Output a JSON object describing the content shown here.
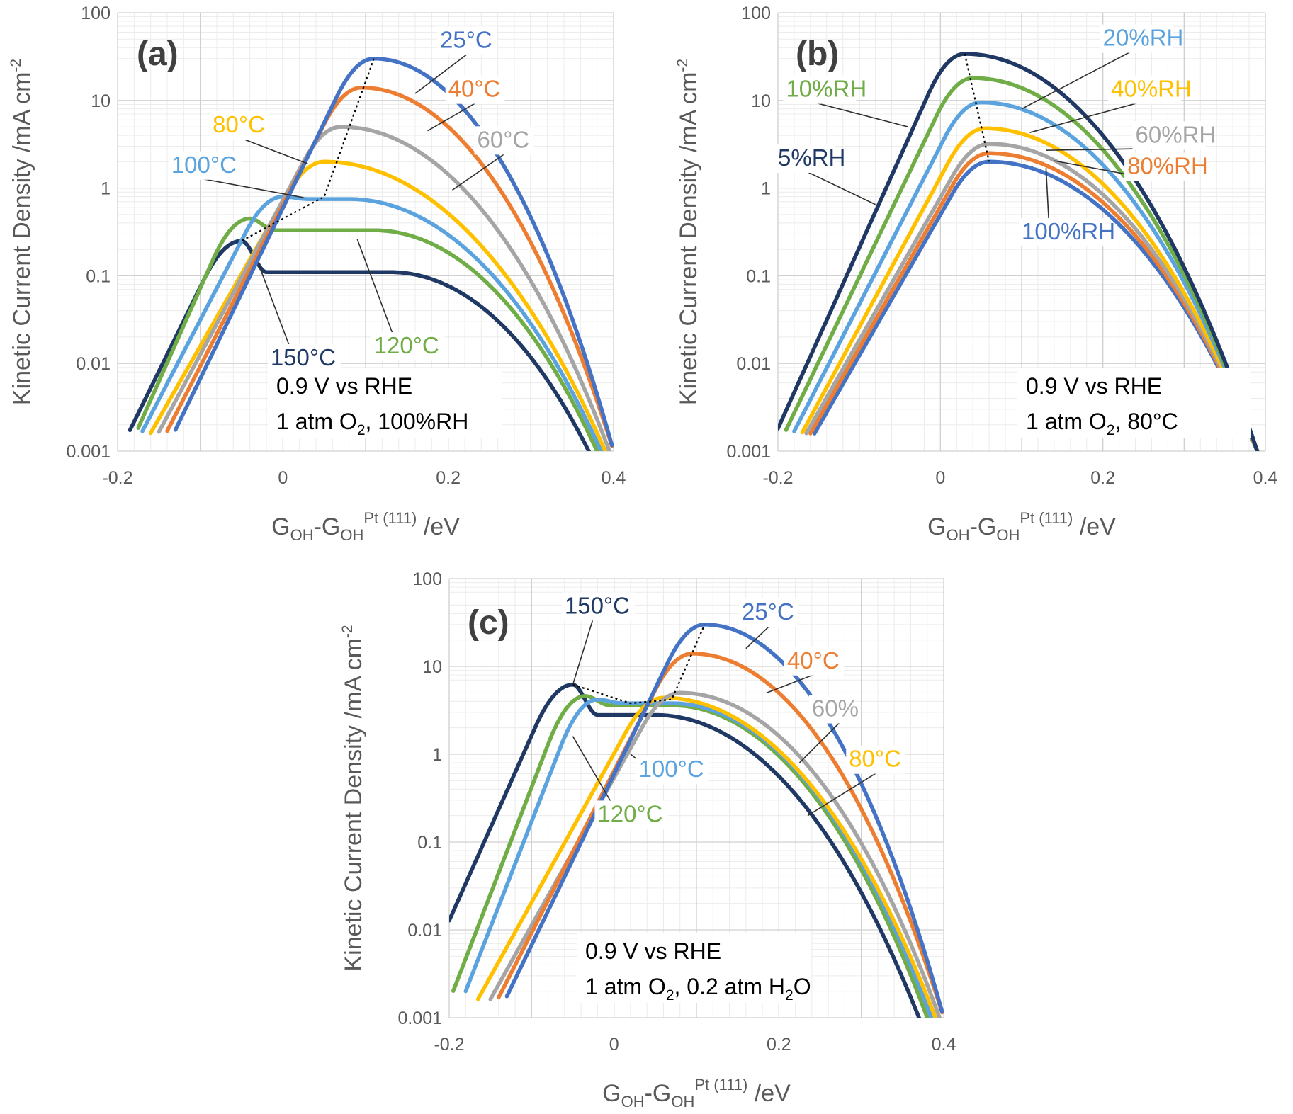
{
  "chart_data": [
    {
      "type": "line",
      "panel_label": "(a)",
      "xlabel": {
        "main": "G",
        "sub1": "OH",
        "mid": "-G",
        "sub2": "OH",
        "sup": "Pt (111)",
        "unit": " /eV"
      },
      "ylabel": {
        "text": "Kinetic Current Density /mA cm",
        "sup": "-2"
      },
      "xlim": [
        -0.2,
        0.4
      ],
      "ylim": [
        0.001,
        100
      ],
      "yscale": "log",
      "xticks": [
        "-0.2",
        "0",
        "0.2",
        "0.4"
      ],
      "yticks": [
        "0.001",
        "0.01",
        "0.1",
        "1",
        "10",
        "100"
      ],
      "grid": true,
      "conditions": [
        {
          "text": "0.9 V vs RHE"
        },
        {
          "pre": "1 atm O",
          "sub": "2",
          "post": ", 100%RH"
        }
      ],
      "series": [
        {
          "name": "25°C",
          "color": "#4472c4",
          "peak_x": 0.11,
          "peak_y": 30,
          "plateau": 0,
          "plateau_end": 0.05,
          "onset_x": -0.12,
          "end_x": 0.4,
          "label_x": 0.19,
          "label_y": 40,
          "anchor_x": 0.16,
          "anchor_y": 12
        },
        {
          "name": "40°C",
          "color": "#ed7d31",
          "peak_x": 0.095,
          "peak_y": 14,
          "plateau": 0,
          "plateau_end": 0.05,
          "onset_x": -0.13,
          "end_x": 0.4,
          "label_x": 0.2,
          "label_y": 11,
          "anchor_x": 0.175,
          "anchor_y": 4.5
        },
        {
          "name": "60°C",
          "color": "#a5a5a5",
          "peak_x": 0.07,
          "peak_y": 5,
          "plateau": 0,
          "plateau_end": 0.05,
          "onset_x": -0.14,
          "end_x": 0.395,
          "label_x": 0.235,
          "label_y": 2.9,
          "anchor_x": 0.205,
          "anchor_y": 0.95
        },
        {
          "name": "80°C",
          "color": "#ffc000",
          "peak_x": 0.05,
          "peak_y": 2,
          "plateau": 0,
          "plateau_end": 0.05,
          "onset_x": -0.15,
          "end_x": 0.39,
          "label_x": -0.085,
          "label_y": 4.3,
          "anchor_x": 0.03,
          "anchor_y": 1.9
        },
        {
          "name": "100°C",
          "color": "#5ba3de",
          "peak_x": 0.0,
          "peak_y": 0.8,
          "plateau": 0.75,
          "plateau_end": 0.08,
          "onset_x": -0.16,
          "end_x": 0.385,
          "label_x": -0.135,
          "label_y": 1.5,
          "anchor_x": 0.025,
          "anchor_y": 0.78
        },
        {
          "name": "120°C",
          "color": "#70ad47",
          "peak_x": -0.04,
          "peak_y": 0.45,
          "plateau": 0.33,
          "plateau_end": 0.11,
          "onset_x": -0.165,
          "end_x": 0.38,
          "label_x": 0.11,
          "label_y": 0.013,
          "anchor_x": 0.09,
          "anchor_y": 0.26
        },
        {
          "name": "150°C",
          "color": "#1f3864",
          "peak_x": -0.05,
          "peak_y": 0.25,
          "plateau": 0.11,
          "plateau_end": 0.13,
          "onset_x": -0.175,
          "end_x": 0.37,
          "label_x": -0.015,
          "label_y": 0.0095,
          "anchor_x": -0.03,
          "anchor_y": 0.14
        }
      ],
      "trend": [
        [
          0.11,
          30
        ],
        [
          0.05,
          0.8
        ],
        [
          -0.05,
          0.25
        ]
      ]
    },
    {
      "type": "line",
      "panel_label": "(b)",
      "xlabel": {
        "main": "G",
        "sub1": "OH",
        "mid": "-G",
        "sub2": "OH",
        "sup": "Pt (111)",
        "unit": " /eV"
      },
      "ylabel": {
        "text": "Kinetic Current Density /mA cm",
        "sup": "-2"
      },
      "xlim": [
        -0.2,
        0.4
      ],
      "ylim": [
        0.001,
        100
      ],
      "yscale": "log",
      "xticks": [
        "-0.2",
        "0",
        "0.2",
        "0.4"
      ],
      "yticks": [
        "0.001",
        "0.01",
        "0.1",
        "1",
        "10",
        "100"
      ],
      "grid": true,
      "conditions": [
        {
          "text": "0.9 V vs RHE"
        },
        {
          "pre": "1 atm O",
          "sub": "2",
          "post": ", 80°C"
        }
      ],
      "series": [
        {
          "name": "5%RH",
          "color": "#1f3864",
          "peak_x": 0.03,
          "peak_y": 34,
          "plateau": 0,
          "plateau_end": 0.05,
          "onset_x": -0.19,
          "end_x": 0.39,
          "label_x": -0.2,
          "label_y": 1.8,
          "anchor_x": -0.08,
          "anchor_y": 0.65
        },
        {
          "name": "10%RH",
          "color": "#70ad47",
          "peak_x": 0.04,
          "peak_y": 18,
          "plateau": 0,
          "plateau_end": 0.05,
          "onset_x": -0.18,
          "end_x": 0.39,
          "label_x": -0.19,
          "label_y": 11,
          "anchor_x": -0.04,
          "anchor_y": 5
        },
        {
          "name": "20%RH",
          "color": "#5ba3de",
          "peak_x": 0.05,
          "peak_y": 9.5,
          "plateau": 0,
          "plateau_end": 0.05,
          "onset_x": -0.17,
          "end_x": 0.39,
          "label_x": 0.2,
          "label_y": 42,
          "anchor_x": 0.1,
          "anchor_y": 8
        },
        {
          "name": "40%RH",
          "color": "#ffc000",
          "peak_x": 0.055,
          "peak_y": 4.8,
          "plateau": 0,
          "plateau_end": 0.05,
          "onset_x": -0.16,
          "end_x": 0.39,
          "label_x": 0.21,
          "label_y": 11,
          "anchor_x": 0.11,
          "anchor_y": 4.3
        },
        {
          "name": "60%RH",
          "color": "#a5a5a5",
          "peak_x": 0.06,
          "peak_y": 3.2,
          "plateau": 0,
          "plateau_end": 0.05,
          "onset_x": -0.155,
          "end_x": 0.39,
          "label_x": 0.24,
          "label_y": 3.3,
          "anchor_x": 0.13,
          "anchor_y": 2.7
        },
        {
          "name": "80%RH",
          "color": "#ed7d31",
          "peak_x": 0.06,
          "peak_y": 2.5,
          "plateau": 0,
          "plateau_end": 0.05,
          "onset_x": -0.15,
          "end_x": 0.39,
          "label_x": 0.23,
          "label_y": 1.45,
          "anchor_x": 0.14,
          "anchor_y": 2.05
        },
        {
          "name": "100%RH",
          "color": "#4472c4",
          "peak_x": 0.06,
          "peak_y": 2.0,
          "plateau": 0,
          "plateau_end": 0.05,
          "onset_x": -0.145,
          "end_x": 0.39,
          "label_x": 0.1,
          "label_y": 0.26,
          "anchor_x": 0.13,
          "anchor_y": 1.7
        }
      ],
      "trend": [
        [
          0.03,
          34
        ],
        [
          0.06,
          2.0
        ]
      ]
    },
    {
      "type": "line",
      "panel_label": "(c)",
      "xlabel": {
        "main": "G",
        "sub1": "OH",
        "mid": "-G",
        "sub2": "OH",
        "sup": "Pt (111)",
        "unit": " /eV"
      },
      "ylabel": {
        "text": "Kinetic Current Density /mA cm",
        "sup": "-2"
      },
      "xlim": [
        -0.2,
        0.4
      ],
      "ylim": [
        0.001,
        100
      ],
      "yscale": "log",
      "xticks": [
        "-0.2",
        "0",
        "0.2",
        "0.4"
      ],
      "yticks": [
        "0.001",
        "0.01",
        "0.1",
        "1",
        "10",
        "100"
      ],
      "grid": true,
      "conditions": [
        {
          "text": "0.9 V vs RHE"
        },
        {
          "pre": "1 atm O",
          "sub": "2",
          "post": ", 0.2 atm H",
          "sub2": "2",
          "post2": "O"
        }
      ],
      "series": [
        {
          "name": "25°C",
          "color": "#4472c4",
          "peak_x": 0.11,
          "peak_y": 30,
          "plateau": 0,
          "plateau_end": 0.05,
          "onset_x": -0.12,
          "end_x": 0.4,
          "label_x": 0.155,
          "label_y": 34,
          "anchor_x": 0.16,
          "anchor_y": 16
        },
        {
          "name": "40°C",
          "color": "#ed7d31",
          "peak_x": 0.095,
          "peak_y": 14,
          "plateau": 0,
          "plateau_end": 0.05,
          "onset_x": -0.13,
          "end_x": 0.4,
          "label_x": 0.21,
          "label_y": 9.5,
          "anchor_x": 0.185,
          "anchor_y": 5
        },
        {
          "name": "60%",
          "color": "#a5a5a5",
          "peak_x": 0.08,
          "peak_y": 5,
          "plateau": 0,
          "plateau_end": 0.05,
          "onset_x": -0.14,
          "end_x": 0.395,
          "label_x": 0.24,
          "label_y": 2.7,
          "anchor_x": 0.225,
          "anchor_y": 0.8
        },
        {
          "name": "80°C",
          "color": "#ffc000",
          "peak_x": 0.06,
          "peak_y": 4.4,
          "plateau": 0,
          "plateau_end": 0.05,
          "onset_x": -0.155,
          "end_x": 0.39,
          "label_x": 0.285,
          "label_y": 0.72,
          "anchor_x": 0.235,
          "anchor_y": 0.2
        },
        {
          "name": "100°C",
          "color": "#5ba3de",
          "peak_x": -0.02,
          "peak_y": 4.2,
          "plateau": 3.8,
          "plateau_end": 0.07,
          "onset_x": -0.17,
          "end_x": 0.385,
          "label_x": 0.03,
          "label_y": 0.55,
          "anchor_x": 0.02,
          "anchor_y": 1.0
        },
        {
          "name": "120°C",
          "color": "#70ad47",
          "peak_x": -0.035,
          "peak_y": 4.6,
          "plateau": 3.6,
          "plateau_end": 0.07,
          "onset_x": -0.185,
          "end_x": 0.38,
          "label_x": -0.02,
          "label_y": 0.17,
          "anchor_x": -0.05,
          "anchor_y": 1.6
        },
        {
          "name": "150°C",
          "color": "#1f3864",
          "peak_x": -0.05,
          "peak_y": 6.2,
          "plateau": 2.8,
          "plateau_end": 0.05,
          "onset_x": -0.23,
          "end_x": 0.37,
          "label_x": -0.06,
          "label_y": 40,
          "anchor_x": -0.05,
          "anchor_y": 6.2
        }
      ],
      "trend": [
        [
          -0.05,
          6.2
        ],
        [
          0.02,
          3.8
        ],
        [
          0.07,
          4.2
        ],
        [
          0.11,
          30
        ]
      ]
    }
  ]
}
